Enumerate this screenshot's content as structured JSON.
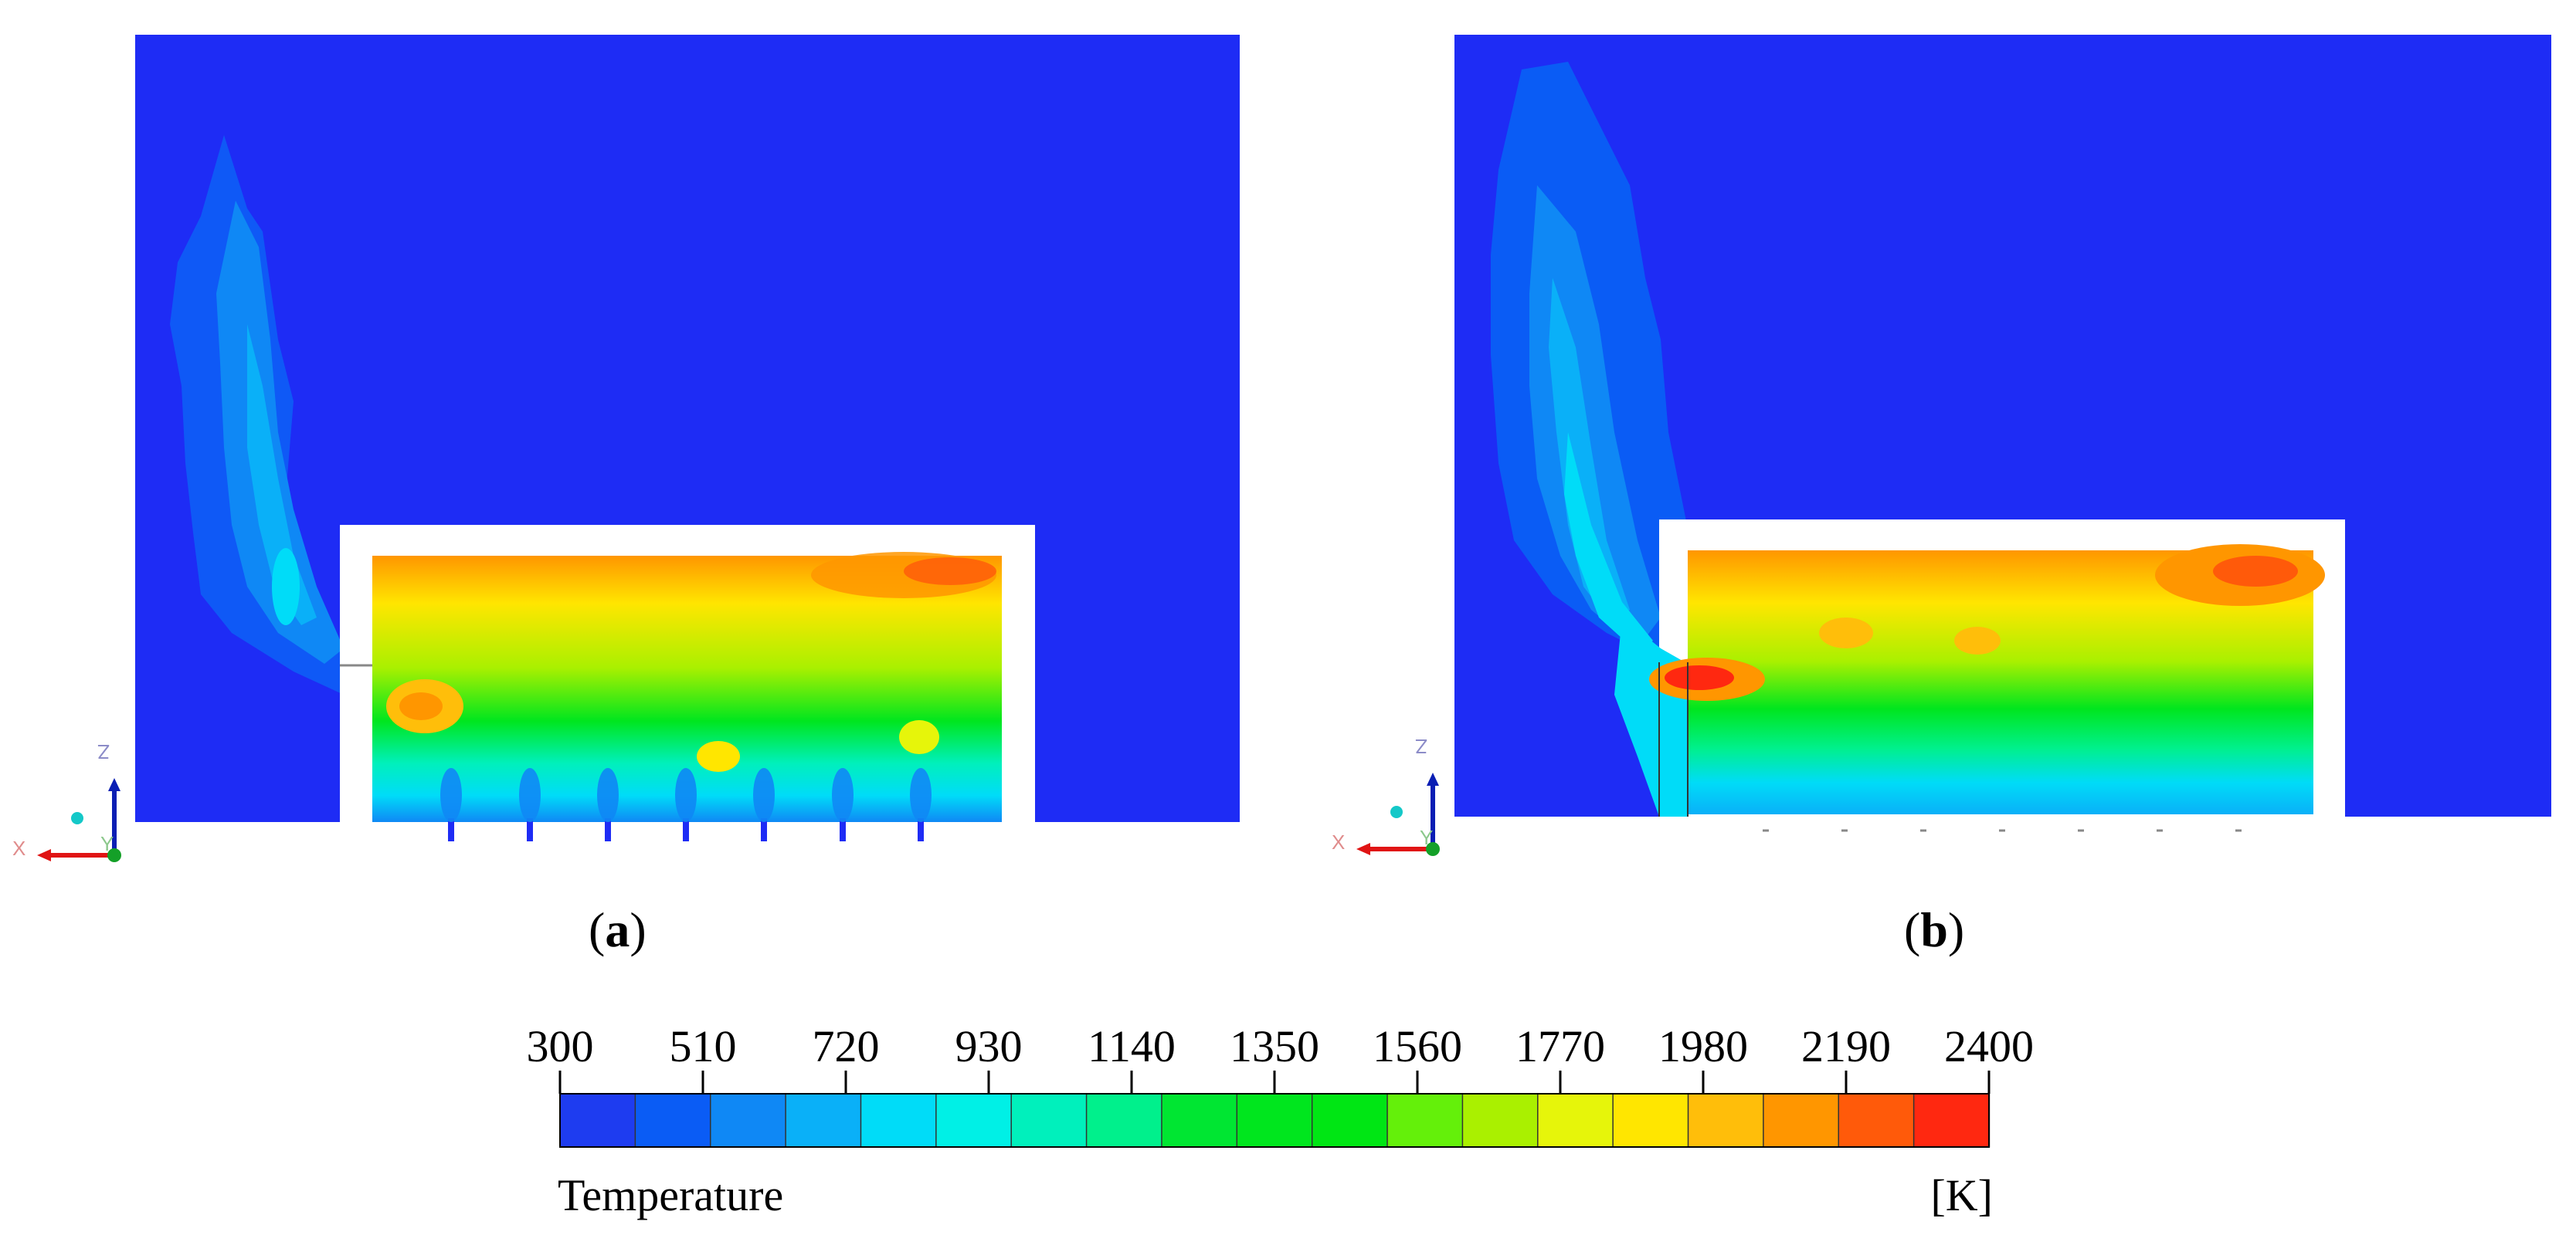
{
  "panels": [
    {
      "id": "a",
      "label": "a",
      "left_paren": "(",
      "right_paren": ")"
    },
    {
      "id": "b",
      "label": "b",
      "left_paren": "(",
      "right_paren": ")"
    }
  ],
  "triad": {
    "x": "X",
    "y": "Y",
    "z": "Z"
  },
  "colorbar": {
    "title": "Temperature",
    "unit": "[K]",
    "ticks": [
      "300",
      "510",
      "720",
      "930",
      "1140",
      "1350",
      "1560",
      "1770",
      "1980",
      "2190",
      "2400"
    ],
    "colors": [
      "#1e3cf0",
      "#0a5cf5",
      "#0f88f5",
      "#0ab0f8",
      "#00dcf8",
      "#00f0e6",
      "#00f0bc",
      "#00f08c",
      "#00e632",
      "#00e61e",
      "#00e614",
      "#64f00a",
      "#aaf000",
      "#e6f50a",
      "#ffe600",
      "#ffbe0a",
      "#ff9600",
      "#ff5a0a",
      "#ff2810"
    ]
  },
  "field_colors": {
    "background": "#1e2cf5",
    "walls": "#ffffff"
  }
}
